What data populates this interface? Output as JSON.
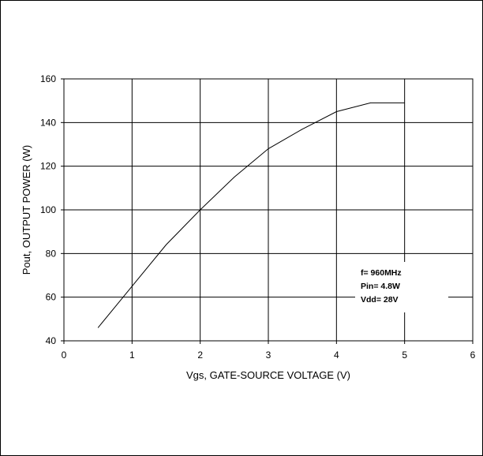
{
  "chart_data": {
    "type": "line",
    "xlabel": "Vgs, GATE-SOURCE VOLTAGE (V)",
    "ylabel": "Pout, OUTPUT POWER (W)",
    "xlim": [
      0,
      6
    ],
    "ylim": [
      40,
      160
    ],
    "x_ticks": [
      0,
      1,
      2,
      3,
      4,
      5,
      6
    ],
    "y_ticks": [
      40,
      60,
      80,
      100,
      120,
      140,
      160
    ],
    "grid": true,
    "series": [
      {
        "x": [
          0.5,
          1.0,
          1.5,
          2.0,
          2.5,
          3.0,
          3.5,
          4.0,
          4.5,
          5.0
        ],
        "y": [
          46,
          65,
          84,
          100,
          115,
          128,
          137,
          145,
          149,
          149
        ]
      }
    ],
    "annotation": {
      "lines": [
        "f= 960MHz",
        "Pin= 4.8W",
        "Vdd= 28V"
      ]
    },
    "colors": {
      "line": "#000000",
      "grid": "#000000",
      "background": "#ffffff"
    }
  }
}
